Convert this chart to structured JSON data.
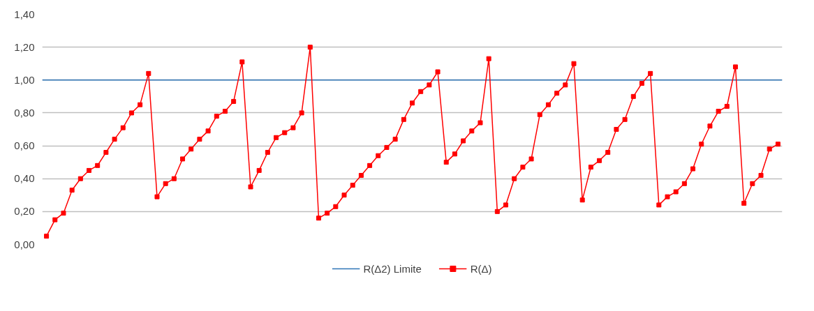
{
  "chart_data": {
    "type": "line",
    "categories": [
      null,
      null,
      null,
      null,
      null,
      null,
      null,
      null,
      null,
      null,
      null,
      null,
      null,
      null,
      null,
      null,
      null,
      null,
      null,
      null,
      null,
      null,
      null,
      null,
      null,
      null,
      null,
      null,
      null,
      null,
      null,
      null,
      null,
      null,
      null,
      null,
      null,
      null,
      null,
      null,
      null,
      null,
      null,
      null,
      null,
      null,
      null,
      null,
      null,
      null,
      null,
      null,
      null,
      null,
      null,
      null,
      null,
      null,
      null,
      null,
      null,
      null,
      null,
      null,
      null,
      null,
      null,
      null,
      null,
      null,
      null,
      null,
      null,
      null,
      null,
      null,
      null,
      null,
      null,
      null,
      null,
      null,
      null,
      null,
      null,
      null,
      null
    ],
    "series": [
      {
        "name": "R(Δ)",
        "color": "#ff0000",
        "values": [
          0.05,
          0.15,
          0.19,
          0.33,
          0.4,
          0.45,
          0.48,
          0.56,
          0.64,
          0.71,
          0.8,
          0.85,
          1.04,
          0.29,
          0.37,
          0.4,
          0.52,
          0.58,
          0.64,
          0.69,
          0.78,
          0.81,
          0.87,
          1.11,
          0.35,
          0.45,
          0.56,
          0.65,
          0.68,
          0.71,
          0.8,
          1.2,
          0.16,
          0.19,
          0.23,
          0.3,
          0.36,
          0.42,
          0.48,
          0.54,
          0.59,
          0.64,
          0.76,
          0.86,
          0.93,
          0.97,
          1.05,
          0.5,
          0.55,
          0.63,
          0.69,
          0.74,
          1.13,
          0.2,
          0.24,
          0.4,
          0.47,
          0.52,
          0.79,
          0.85,
          0.92,
          0.97,
          1.1,
          0.27,
          0.47,
          0.51,
          0.56,
          0.7,
          0.76,
          0.9,
          0.98,
          1.04,
          0.24,
          0.29,
          0.32,
          0.37,
          0.46,
          0.61,
          0.72,
          0.81,
          0.84,
          1.08,
          0.25,
          0.37,
          0.42,
          0.58,
          0.61
        ]
      }
    ],
    "ref_lines": [
      {
        "axis": "y",
        "value": 1.0,
        "label": "R(Δ2) Limite",
        "color": "#2e75b6"
      }
    ],
    "ylim": [
      0,
      1.4
    ],
    "yticks": [
      {
        "value": 0,
        "label": "0,00"
      },
      {
        "value": 0.2,
        "label": "0,20"
      },
      {
        "value": 0.4,
        "label": "0,40"
      },
      {
        "value": 0.6,
        "label": "0,60"
      },
      {
        "value": 0.8,
        "label": "0,80"
      },
      {
        "value": 1.0,
        "label": "1,00"
      },
      {
        "value": 1.2,
        "label": "1,20"
      },
      {
        "value": 1.4,
        "label": "1,40"
      }
    ],
    "grid": "y",
    "legend": "bottom",
    "marker": "square",
    "line_style": "solid",
    "tick_labels": "y"
  }
}
